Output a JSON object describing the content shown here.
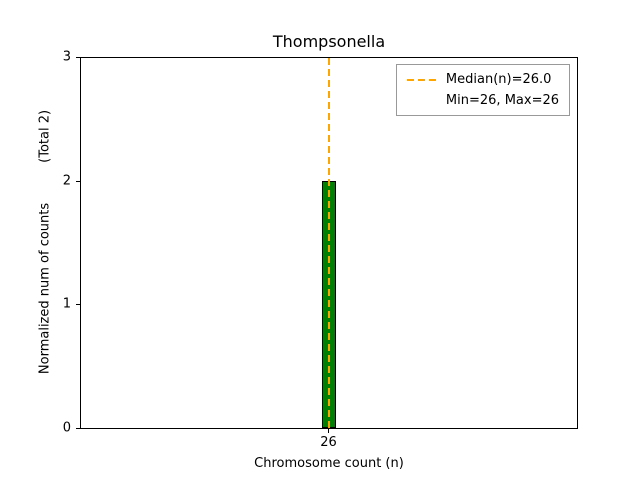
{
  "chart_data": {
    "type": "bar",
    "title": "Thompsonella",
    "xlabel": "Chromosome count (n)",
    "ylabel": "Normalized num of counts",
    "ylabel_annotation": "(Total 2)",
    "categories": [
      "26"
    ],
    "values": [
      2
    ],
    "total_count": 2,
    "ylim": [
      0,
      3
    ],
    "yticks": [
      "0",
      "1",
      "2",
      "3"
    ],
    "xticks": [
      "26"
    ],
    "grid": false,
    "bar_fill_color": "#008000",
    "bar_edge_color": "#000000",
    "median": {
      "value": 26.0,
      "line_style": "dashed",
      "line_color": "#ffa500"
    },
    "min": 26,
    "max": 26,
    "legend": {
      "position": "upper right",
      "entries": [
        {
          "label": "Median(n)=26.0",
          "swatch": "dashed-line",
          "color": "#ffa500"
        },
        {
          "label": "Min=26, Max=26",
          "swatch": "none"
        }
      ]
    }
  }
}
